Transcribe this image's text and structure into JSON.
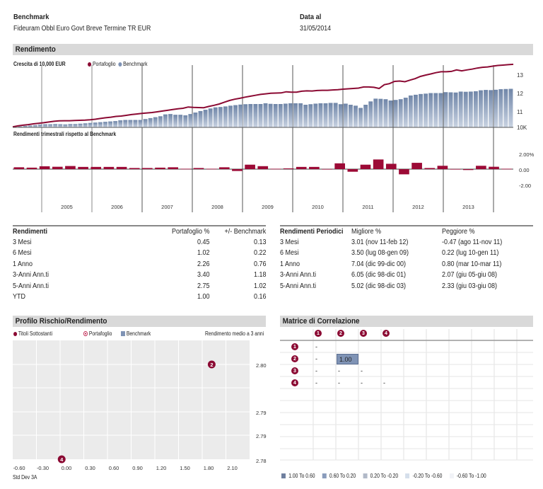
{
  "header": {
    "benchmark_label": "Benchmark",
    "benchmark_value": "Fideuram Obbl Euro Govt Breve Termine TR EUR",
    "date_label": "Data al",
    "date_value": "31/05/2014"
  },
  "rendimento": {
    "title": "Rendimento",
    "growth_title": "Crescita di  10,000 EUR",
    "legend": [
      {
        "label": "Portafoglio",
        "color": "#8b0a33"
      },
      {
        "label": "Benchmark",
        "color": "#7f93b5"
      }
    ],
    "quarterly_title": "Rendimenti trimestrali rispetto al Benchmark"
  },
  "chart_data": [
    {
      "type": "line",
      "title": "Crescita di 10,000 EUR",
      "ylabel": "",
      "yticks": [
        "10K",
        "11",
        "12",
        "13"
      ],
      "ylim": [
        10,
        13.4
      ],
      "x_ticks": [
        "2005",
        "2006",
        "2007",
        "2008",
        "2009",
        "2010",
        "2011",
        "2012",
        "2013"
      ],
      "series": [
        {
          "name": "Portafoglio",
          "kind": "line",
          "color": "#8b0a33",
          "values": [
            10.03,
            10.08,
            10.12,
            10.15,
            10.19,
            10.22,
            10.25,
            10.29,
            10.33,
            10.35,
            10.36,
            10.36,
            10.37,
            10.38,
            10.39,
            10.41,
            10.44,
            10.48,
            10.52,
            10.55,
            10.59,
            10.61,
            10.65,
            10.69,
            10.72,
            10.75,
            10.78,
            10.8,
            10.84,
            10.88,
            10.92,
            10.96,
            11.0,
            11.03,
            11.1,
            11.08,
            11.07,
            11.06,
            11.13,
            11.19,
            11.26,
            11.36,
            11.45,
            11.52,
            11.57,
            11.63,
            11.68,
            11.73,
            11.78,
            11.81,
            11.84,
            11.85,
            11.86,
            11.92,
            11.9,
            11.9,
            11.95,
            11.97,
            11.96,
            11.99,
            12.0,
            12.0,
            12.02,
            12.03,
            12.06,
            12.08,
            12.1,
            12.12,
            12.18,
            12.18,
            12.16,
            12.1,
            12.3,
            12.36,
            12.48,
            12.5,
            12.46,
            12.55,
            12.63,
            12.75,
            12.82,
            12.88,
            12.95,
            13.0,
            13.0,
            13.02,
            13.1,
            13.05,
            13.1,
            13.14,
            13.2,
            13.24,
            13.26,
            13.3,
            13.34,
            13.36,
            13.38,
            13.4
          ]
        },
        {
          "name": "Benchmark",
          "kind": "bar",
          "color": "#7f93b5",
          "values": [
            10.02,
            10.05,
            10.08,
            10.1,
            10.12,
            10.15,
            10.17,
            10.17,
            10.18,
            10.17,
            10.16,
            10.18,
            10.18,
            10.2,
            10.22,
            10.24,
            10.26,
            10.28,
            10.3,
            10.32,
            10.34,
            10.38,
            10.4,
            10.4,
            10.4,
            10.4,
            10.45,
            10.5,
            10.55,
            10.6,
            10.7,
            10.72,
            10.68,
            10.68,
            10.65,
            10.72,
            10.8,
            10.88,
            10.95,
            11.02,
            11.08,
            11.1,
            11.13,
            11.17,
            11.2,
            11.23,
            11.25,
            11.26,
            11.26,
            11.26,
            11.3,
            11.27,
            11.26,
            11.26,
            11.28,
            11.3,
            11.3,
            11.3,
            11.22,
            11.25,
            11.28,
            11.3,
            11.3,
            11.32,
            11.32,
            11.25,
            11.28,
            11.22,
            11.17,
            11.05,
            11.22,
            11.4,
            11.55,
            11.54,
            11.52,
            11.45,
            11.48,
            11.52,
            11.6,
            11.72,
            11.76,
            11.8,
            11.82,
            11.85,
            11.85,
            11.85,
            11.9,
            11.89,
            11.88,
            11.93,
            11.92,
            11.93,
            11.95,
            12.0,
            12.02,
            12.01,
            12.03,
            12.06,
            12.07,
            12.08
          ]
        }
      ]
    },
    {
      "type": "bar",
      "title": "Rendimenti trimestrali rispetto al Benchmark",
      "yticks": [
        "2.00%",
        "0.00",
        "-2.00"
      ],
      "ylim": [
        -3.5,
        4.5
      ],
      "x_ticks": [
        "2005",
        "2006",
        "2007",
        "2008",
        "2009",
        "2010",
        "2011",
        "2012",
        "2013"
      ],
      "series": [
        {
          "name": "Portafoglio vs Benchmark",
          "color": "#9c0a36",
          "values": [
            0.25,
            0.2,
            0.38,
            0.32,
            0.42,
            0.3,
            0.3,
            0.3,
            0.3,
            0.15,
            0.15,
            0.2,
            0.25,
            0.05,
            0.15,
            0.05,
            0.25,
            -0.25,
            0.6,
            0.4,
            0.05,
            0.1,
            0.3,
            0.3,
            0.02,
            0.78,
            -0.35,
            0.6,
            1.3,
            0.72,
            -0.7,
            0.85,
            0.15,
            0.45,
            0.02,
            -0.12,
            0.45,
            0.32,
            0.05
          ]
        }
      ]
    },
    {
      "type": "scatter",
      "title": "Profilo Rischio/Rendimento",
      "xlabel": "Std Dev 3A",
      "ylabel": "Rendimento medio a 3 anni",
      "x_ticks": [
        "-0.60",
        "-0.30",
        "0.00",
        "0.30",
        "0.60",
        "0.90",
        "1.20",
        "1.50",
        "1.80",
        "2.10"
      ],
      "y_ticks": [
        "2.80",
        "2.79",
        "2.79",
        "2.78"
      ],
      "xlim": [
        -0.6,
        2.45
      ],
      "ylim": [
        2.78,
        2.81
      ],
      "legend": [
        "Titoli Sottostanti",
        "Portafoglio",
        "Benchmark"
      ],
      "points": [
        {
          "label": "2",
          "x": 1.92,
          "y": 2.8
        },
        {
          "label": "4",
          "x": 0.02,
          "y": 2.78
        }
      ]
    }
  ],
  "returns_table": {
    "headers": [
      "Rendimenti",
      "Portafoglio %",
      "+/- Benchmark"
    ],
    "rows": [
      [
        "3 Mesi",
        "0.45",
        "0.13"
      ],
      [
        "6 Mesi",
        "1.02",
        "0.22"
      ],
      [
        "1 Anno",
        "2.26",
        "0.76"
      ],
      [
        "3-Anni Ann.ti",
        "3.40",
        "1.18"
      ],
      [
        "5-Anni Ann.ti",
        "2.75",
        "1.02"
      ],
      [
        "YTD",
        "1.00",
        "0.16"
      ]
    ]
  },
  "periodic_table": {
    "headers": [
      "Rendimenti Periodici",
      "Migliore %",
      "Peggiore %"
    ],
    "rows": [
      [
        "3 Mesi",
        "3.01 (nov 11-feb 12)",
        "-0.47 (ago 11-nov 11)"
      ],
      [
        "6 Mesi",
        "3.50 (lug 08-gen 09)",
        "0.22 (lug 10-gen 11)"
      ],
      [
        "1 Anno",
        "7.04 (dic 99-dic 00)",
        "0.80 (mar 10-mar 11)"
      ],
      [
        "3-Anni Ann.ti",
        "6.05 (dic 98-dic 01)",
        "2.07 (giu 05-giu 08)"
      ],
      [
        "5-Anni Ann.ti",
        "5.02 (dic 98-dic 03)",
        "2.33 (giu 03-giu 08)"
      ]
    ]
  },
  "risk_profile": {
    "title": "Profilo Rischio/Rendimento",
    "legend": [
      {
        "label": "Titoli Sottostanti",
        "icon": "filled-dot"
      },
      {
        "label": "Portafoglio",
        "icon": "target-dot"
      },
      {
        "label": "Benchmark",
        "icon": "square"
      }
    ],
    "y_title": "Rendimento medio a 3 anni",
    "x_title": "Std Dev 3A"
  },
  "correlation": {
    "title": "Matrice di Correlazione",
    "columns": [
      "1",
      "2",
      "3",
      "4"
    ],
    "rows": [
      {
        "label": "1",
        "cells": [
          "-",
          "",
          "",
          ""
        ]
      },
      {
        "label": "2",
        "cells": [
          "-",
          "1.00",
          "",
          ""
        ]
      },
      {
        "label": "3",
        "cells": [
          "-",
          "-",
          "-",
          ""
        ]
      },
      {
        "label": "4",
        "cells": [
          "-",
          "-",
          "-",
          "-"
        ]
      }
    ],
    "legend": [
      {
        "label": "1.00 To 0.60",
        "color": "#6f7f9f"
      },
      {
        "label": "0.60 To 0.20",
        "color": "#8a9cbc"
      },
      {
        "label": "0.20 To -0.20",
        "color": "#b1b9c8"
      },
      {
        "label": "-0.20 To -0.60",
        "color": "#d5dfeb"
      },
      {
        "label": "-0.60 To -1.00",
        "color": "#f1f3f7"
      }
    ]
  }
}
